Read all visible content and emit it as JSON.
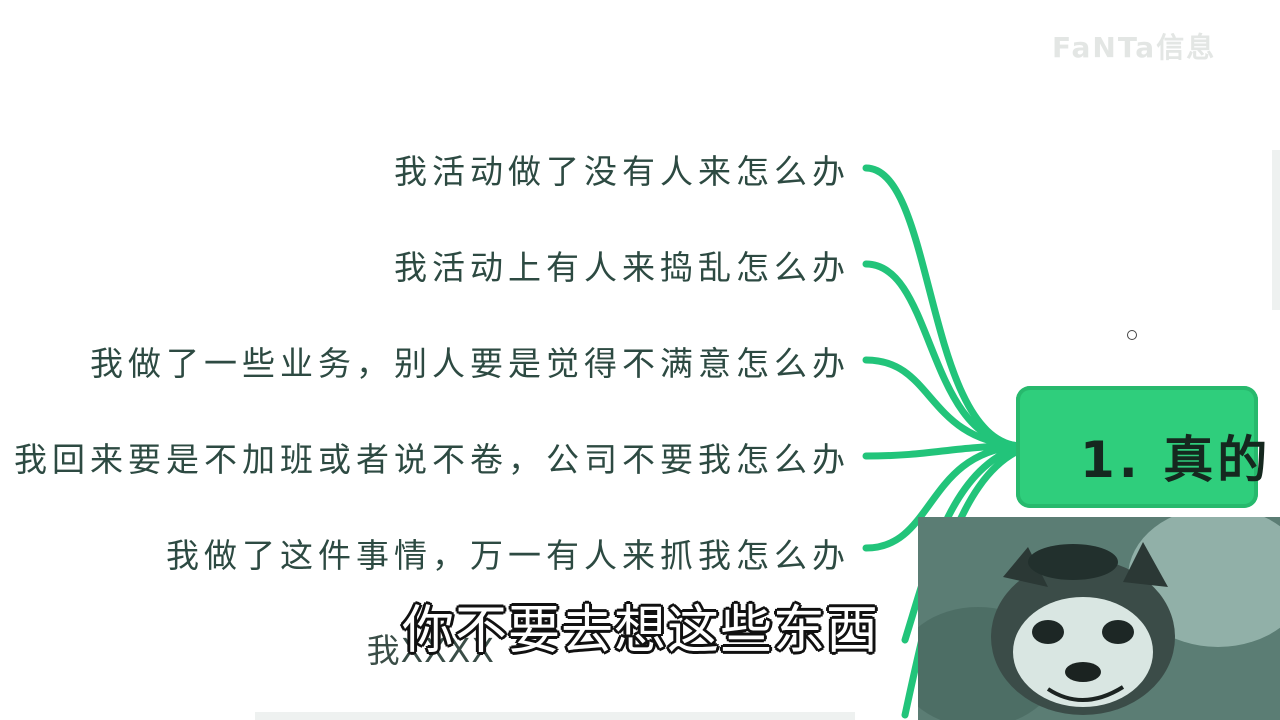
{
  "watermark": "FaNTa信息",
  "mindmap": {
    "branches": [
      "我活动做了没有人来怎么办",
      "我活动上有人来捣乱怎么办",
      "我做了一些业务，别人要是觉得不满意怎么办",
      "我回来要是不加班或者说不卷，公司不要我怎么办",
      "我做了这件事情，万一有人来抓我怎么办",
      "我XXXX"
    ],
    "node_label": "1. 真的",
    "accent_color": "#2fce7c",
    "line_color": "#22c47a"
  },
  "subtitle": "你不要去想这些东西",
  "photo": {
    "icon": "red-panda-photo"
  }
}
